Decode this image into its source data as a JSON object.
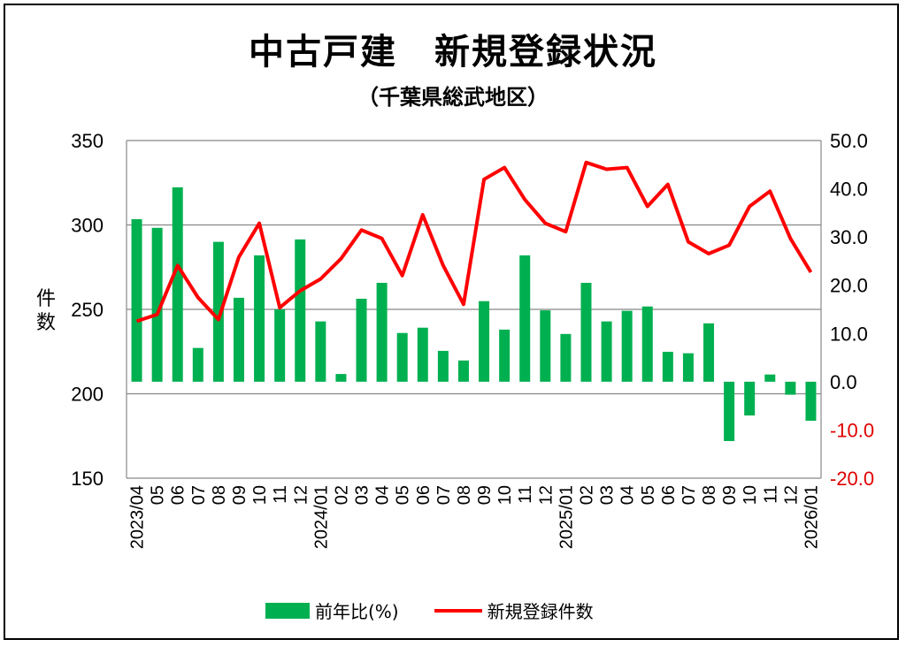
{
  "chart_data": {
    "type": "bar+line",
    "title": "中古戸建　新規登録状況",
    "subtitle": "（千葉県総武地区）",
    "ylabel": "件数",
    "ylim": [
      150,
      350
    ],
    "yticks": [
      "350",
      "300",
      "250",
      "200",
      "150"
    ],
    "y2lim": [
      -20,
      50
    ],
    "y2ticks": [
      "50.0",
      "40.0",
      "30.0",
      "20.0",
      "10.0",
      "0.0",
      "-10.0",
      "-20.0"
    ],
    "categories": [
      "2023/04",
      "05",
      "06",
      "07",
      "08",
      "09",
      "10",
      "11",
      "12",
      "2024/01",
      "02",
      "03",
      "04",
      "05",
      "06",
      "07",
      "08",
      "09",
      "10",
      "11",
      "12",
      "2025/01",
      "02",
      "03",
      "04",
      "05",
      "06",
      "07",
      "08",
      "09",
      "10",
      "11",
      "12",
      "2026/01"
    ],
    "series": [
      {
        "name": "前年比(%)",
        "type": "bar",
        "axis": "right",
        "color": "#00b050",
        "values": [
          33.7,
          31.9,
          40.3,
          7.0,
          29.0,
          17.4,
          26.2,
          15.0,
          29.5,
          12.5,
          1.6,
          17.2,
          20.5,
          10.1,
          11.2,
          6.4,
          4.4,
          16.7,
          10.8,
          26.2,
          14.8,
          9.9,
          20.5,
          12.5,
          14.7,
          15.6,
          6.2,
          5.9,
          12.1,
          -12.3,
          -7.0,
          1.5,
          -2.7,
          -8.1
        ]
      },
      {
        "name": "新規登録件数",
        "type": "line",
        "axis": "left",
        "color": "#ff0000",
        "values": [
          243,
          247,
          276,
          257,
          244,
          281,
          301,
          251,
          261,
          268,
          280,
          297,
          292,
          270,
          306,
          276,
          253,
          327,
          334,
          315,
          301,
          296,
          337,
          333,
          334,
          311,
          324,
          290,
          283,
          288,
          311,
          320,
          292,
          272
        ]
      }
    ],
    "legend": "bottom"
  }
}
